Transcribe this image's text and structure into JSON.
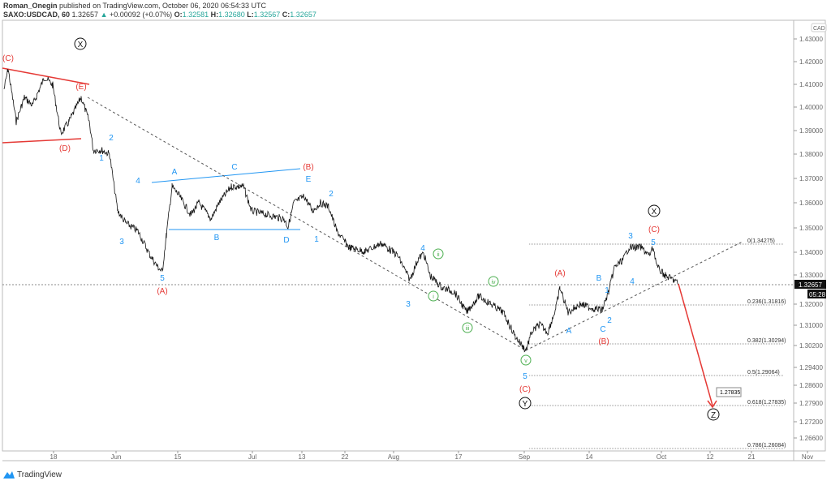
{
  "header": {
    "author": "Roman_Onegin",
    "published": "published on TradingView.com, October 06, 2020 06:54:33 UTC",
    "symbol": "SAXO:USDCAD, 60",
    "last": "1.32657",
    "change": "+0.00092 (+0.07%)",
    "o": "1.32581",
    "h": "1.32680",
    "l": "1.32567",
    "c": "1.32657",
    "o_label": "O:",
    "h_label": "H:",
    "l_label": "L:",
    "c_label": "C:"
  },
  "currency": "CAD",
  "price_axis": [
    "1.43000",
    "1.42000",
    "1.41000",
    "1.40000",
    "1.39000",
    "1.38000",
    "1.37000",
    "1.36000",
    "1.35000",
    "1.34000",
    "1.33000",
    "1.32000",
    "1.31000",
    "1.30200",
    "1.29400",
    "1.28600",
    "1.27900",
    "1.27200",
    "1.26600"
  ],
  "last_price_tag": "1.32657",
  "countdown": "05:28",
  "time_axis": [
    "18",
    "Jun",
    "15",
    "Jul",
    "13",
    "22",
    "Aug",
    "17",
    "Sep",
    "14",
    "Oct",
    "12",
    "21",
    "Nov"
  ],
  "fib": [
    "0(1.34275)",
    "0.236(1.31816)",
    "0.382(1.30294)",
    "0.5(1.29064)",
    "0.618(1.27835)",
    "0.786(1.26084)"
  ],
  "target_label": "1.27835",
  "colors": {
    "red": "#e53935",
    "blue": "#2196f3",
    "green": "#4caf50",
    "up": "#26a69a"
  },
  "waves": {
    "red": [
      "(C)",
      "(E)",
      "(D)",
      "(B)",
      "(A)",
      "(C)",
      "(A)",
      "(B)",
      "(C)"
    ],
    "blue": [
      "2",
      "1",
      "4",
      "3",
      "5",
      "A",
      "C",
      "B",
      "D",
      "E",
      "2",
      "1",
      "4",
      "3",
      "3",
      "5",
      "4",
      "1",
      "B",
      "2",
      "C",
      "A"
    ],
    "green": [
      "ii",
      "i",
      "iv",
      "iii",
      "v"
    ],
    "circled": [
      "X",
      "X",
      "Y",
      "Z"
    ]
  },
  "brand": "TradingView"
}
